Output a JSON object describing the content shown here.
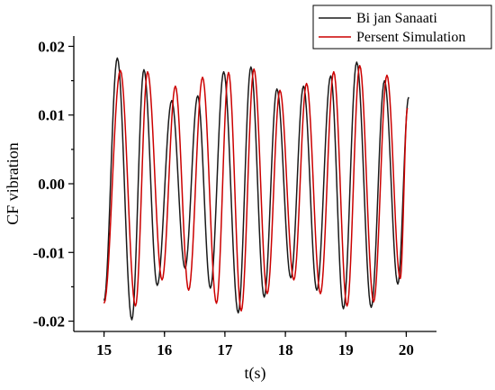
{
  "chart_data": {
    "type": "line",
    "title": "",
    "xlabel": "t(s)",
    "ylabel": "CF vibration",
    "xlim": [
      14.5,
      20.5
    ],
    "ylim": [
      -0.0215,
      0.0215
    ],
    "x_ticks": [
      15,
      16,
      17,
      18,
      19,
      20
    ],
    "x_tick_labels": [
      "15",
      "16",
      "17",
      "18",
      "19",
      "20"
    ],
    "y_ticks": [
      -0.02,
      -0.01,
      0.0,
      0.01,
      0.02
    ],
    "y_tick_labels": [
      "-0.02",
      "-0.01",
      "0.00",
      "0.01",
      "0.02"
    ],
    "grid": false,
    "legend_position": "top-right",
    "series": [
      {
        "name": "Bi jan Sanaati",
        "color": "#1a1a1a",
        "points": [
          [
            15.0,
            -0.017
          ],
          [
            15.22,
            0.0183
          ],
          [
            15.46,
            -0.0198
          ],
          [
            15.66,
            0.0166
          ],
          [
            15.88,
            -0.0148
          ],
          [
            16.12,
            0.0121
          ],
          [
            16.34,
            -0.0123
          ],
          [
            16.55,
            0.0128
          ],
          [
            16.76,
            -0.0152
          ],
          [
            16.98,
            0.0163
          ],
          [
            17.22,
            -0.0188
          ],
          [
            17.43,
            0.017
          ],
          [
            17.65,
            -0.0165
          ],
          [
            17.86,
            0.0138
          ],
          [
            18.09,
            -0.0137
          ],
          [
            18.3,
            0.0142
          ],
          [
            18.52,
            -0.0155
          ],
          [
            18.75,
            0.0157
          ],
          [
            18.96,
            -0.0182
          ],
          [
            19.18,
            0.0177
          ],
          [
            19.42,
            -0.018
          ],
          [
            19.64,
            0.015
          ],
          [
            19.86,
            -0.0146
          ],
          [
            20.04,
            0.0126
          ]
        ]
      },
      {
        "name": "Persent Simulation",
        "color": "#cc0000",
        "points": [
          [
            15.0,
            -0.0174
          ],
          [
            15.27,
            0.0165
          ],
          [
            15.52,
            -0.0178
          ],
          [
            15.72,
            0.0163
          ],
          [
            15.96,
            -0.014
          ],
          [
            16.18,
            0.0142
          ],
          [
            16.4,
            -0.0155
          ],
          [
            16.63,
            0.0155
          ],
          [
            16.86,
            -0.0174
          ],
          [
            17.06,
            0.0162
          ],
          [
            17.27,
            -0.0185
          ],
          [
            17.48,
            0.0167
          ],
          [
            17.7,
            -0.016
          ],
          [
            17.91,
            0.0136
          ],
          [
            18.14,
            -0.014
          ],
          [
            18.35,
            0.0146
          ],
          [
            18.58,
            -0.016
          ],
          [
            18.8,
            0.0163
          ],
          [
            19.02,
            -0.0178
          ],
          [
            19.23,
            0.0172
          ],
          [
            19.46,
            -0.0172
          ],
          [
            19.68,
            0.0158
          ],
          [
            19.9,
            -0.0138
          ],
          [
            20.02,
            0.011
          ]
        ]
      }
    ]
  }
}
